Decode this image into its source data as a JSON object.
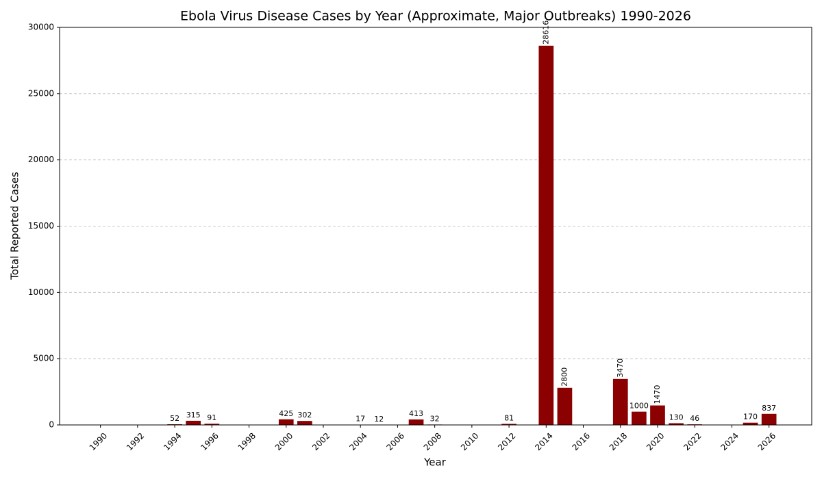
{
  "chart_data": {
    "type": "bar",
    "title": "Ebola Virus Disease Cases by Year (Approximate, Major Outbreaks) 1990-2026",
    "x_label": "Year",
    "y_label": "Total Reported Cases",
    "x": [
      1994,
      1995,
      1996,
      2000,
      2001,
      2004,
      2005,
      2007,
      2008,
      2012,
      2014,
      2015,
      2018,
      2019,
      2020,
      2021,
      2022,
      2025,
      2026
    ],
    "values": [
      52,
      315,
      91,
      425,
      302,
      17,
      12,
      413,
      32,
      81,
      28616,
      2800,
      3470,
      1000,
      1470,
      130,
      46,
      170,
      837
    ],
    "color": "#8b0000",
    "xlim": [
      1987.8,
      2028.3
    ],
    "xticks": [
      1990,
      1992,
      1994,
      1996,
      1998,
      2000,
      2002,
      2004,
      2006,
      2008,
      2010,
      2012,
      2014,
      2016,
      2018,
      2020,
      2022,
      2024,
      2026
    ],
    "ylim": [
      0,
      30000
    ],
    "yticks": [
      0,
      5000,
      10000,
      15000,
      20000,
      25000,
      30000
    ],
    "grid": true
  }
}
